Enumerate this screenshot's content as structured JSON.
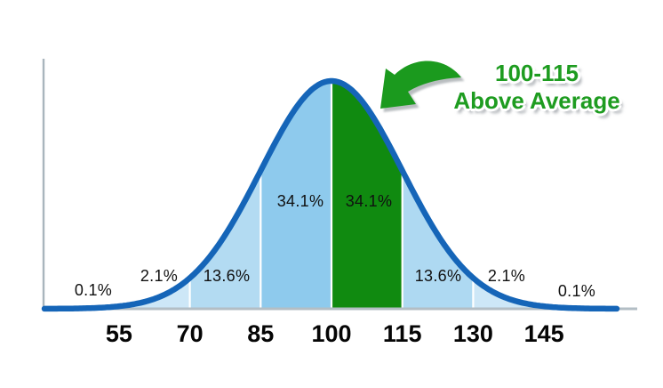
{
  "title": {
    "line1": "100-115",
    "line2": "Above Average",
    "color": "#1e9c20"
  },
  "annotation": {
    "arrow_color": "#1b9a1e",
    "arrow_shadow_color": "#a8adb1"
  },
  "chart_data": {
    "type": "area",
    "description": "Normal (bell curve) distribution of IQ scores, mean 100, SD 15; the 100-115 band is highlighted in green as Above Average",
    "mean": 100,
    "sd": 15,
    "x_ticks": [
      55,
      70,
      85,
      100,
      115,
      130,
      145
    ],
    "bands": [
      {
        "range": "<55",
        "percent": "0.1%",
        "color": "#d8ecf9",
        "highlighted": false
      },
      {
        "range": "55-70",
        "percent": "2.1%",
        "color": "#cde7f7",
        "highlighted": false
      },
      {
        "range": "70-85",
        "percent": "13.6%",
        "color": "#b3dbf2",
        "highlighted": false
      },
      {
        "range": "85-100",
        "percent": "34.1%",
        "color": "#8ecaed",
        "highlighted": false
      },
      {
        "range": "100-115",
        "percent": "34.1%",
        "color": "#108a10",
        "highlighted": true
      },
      {
        "range": "115-130",
        "percent": "13.6%",
        "color": "#aed9f2",
        "highlighted": false
      },
      {
        "range": "130-145",
        "percent": "2.1%",
        "color": "#cde7f7",
        "highlighted": false
      },
      {
        "range": ">145",
        "percent": "0.1%",
        "color": "#d8ecf9",
        "highlighted": false
      }
    ],
    "curve_color": "#1565b8",
    "axis_color": "#b3bec5",
    "divider_color": "#ffffff",
    "grid": false,
    "legend": false
  }
}
